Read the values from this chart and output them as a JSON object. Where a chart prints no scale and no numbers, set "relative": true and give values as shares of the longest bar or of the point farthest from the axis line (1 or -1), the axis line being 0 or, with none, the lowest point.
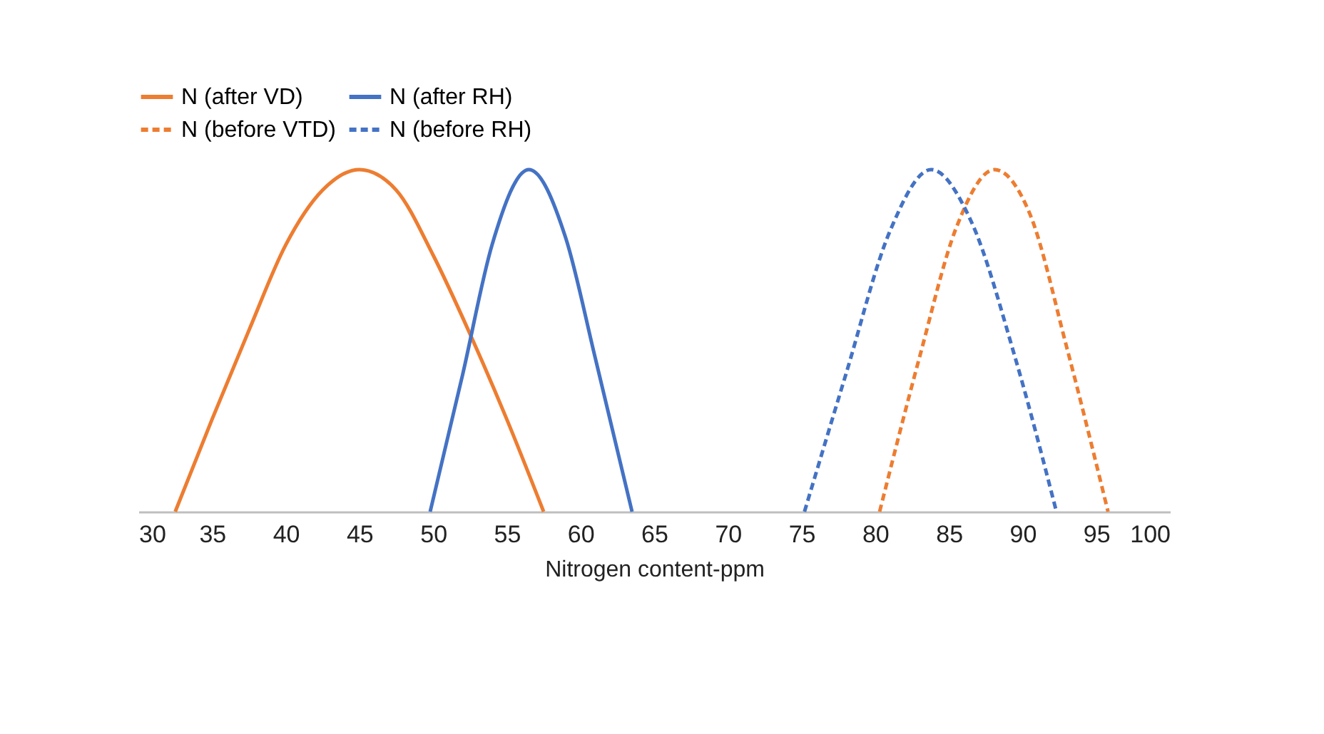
{
  "chart_data": {
    "type": "line",
    "xlabel": "Nitrogen content-ppm",
    "relative": true,
    "xlim": [
      30,
      100
    ],
    "xticks": [
      30,
      35,
      40,
      45,
      50,
      55,
      60,
      65,
      70,
      75,
      80,
      85,
      90,
      95,
      100
    ],
    "legend": "top",
    "grid": false,
    "series": [
      {
        "name": "N (after VD)",
        "color": "#ed7d31",
        "line_style": "solid",
        "x": [
          32.5,
          35,
          37.5,
          40,
          42.5,
          45,
          47.5,
          50,
          52.5,
          55,
          57.5
        ],
        "values": [
          0,
          0.27,
          0.53,
          0.78,
          0.94,
          1,
          0.94,
          0.75,
          0.52,
          0.27,
          0
        ]
      },
      {
        "name": "N (after RH)",
        "color": "#4472c4",
        "line_style": "solid",
        "x": [
          49.8,
          52,
          54,
          56.5,
          59,
          61,
          63.5
        ],
        "values": [
          0,
          0.4,
          0.78,
          1,
          0.8,
          0.45,
          0
        ]
      },
      {
        "name": "N (before VTD)",
        "color": "#ed7d31",
        "line_style": "dashed",
        "x": [
          80.3,
          83,
          85.5,
          88.1,
          90.5,
          93,
          95.8
        ],
        "values": [
          0,
          0.45,
          0.83,
          1,
          0.87,
          0.48,
          0
        ]
      },
      {
        "name": "N (before RH)",
        "color": "#4472c4",
        "line_style": "dashed",
        "x": [
          75.2,
          78,
          81,
          83.8,
          86.5,
          89.5,
          92.3
        ],
        "values": [
          0,
          0.4,
          0.82,
          1,
          0.85,
          0.45,
          0
        ]
      }
    ]
  }
}
